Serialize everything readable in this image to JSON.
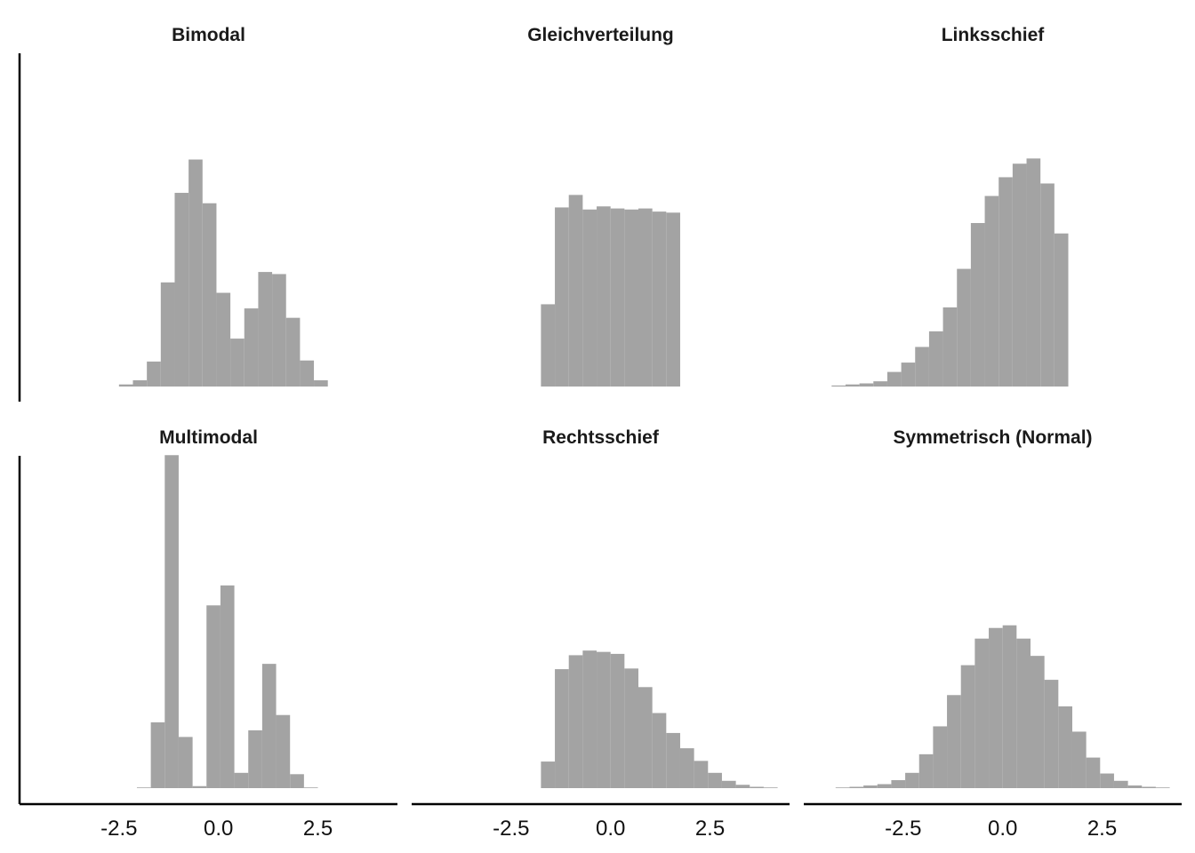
{
  "chart_data": [
    {
      "type": "bar",
      "title": "Bimodal",
      "xlabel": "",
      "ylabel": "",
      "xlim": [
        -5.0,
        4.5
      ],
      "ylim": [
        0,
        0.32
      ],
      "grid": false,
      "bin_edges": [
        -2.5,
        -2.15,
        -1.8,
        -1.45,
        -1.1,
        -0.75,
        -0.4,
        -0.05,
        0.3,
        0.65,
        1.0,
        1.35,
        1.7,
        2.05,
        2.4,
        2.75
      ],
      "values": [
        0.002,
        0.006,
        0.024,
        0.1,
        0.186,
        0.218,
        0.176,
        0.09,
        0.046,
        0.075,
        0.11,
        0.108,
        0.066,
        0.025,
        0.006
      ]
    },
    {
      "type": "bar",
      "title": "Gleichverteilung",
      "xlabel": "",
      "ylabel": "",
      "xlim": [
        -5.0,
        4.5
      ],
      "ylim": [
        0,
        0.32
      ],
      "grid": false,
      "bin_edges": [
        -1.75,
        -1.4,
        -1.05,
        -0.7,
        -0.35,
        0.0,
        0.35,
        0.7,
        1.05,
        1.4,
        1.75
      ],
      "values": [
        0.079,
        0.172,
        0.184,
        0.17,
        0.173,
        0.171,
        0.17,
        0.171,
        0.168,
        0.167,
        0.091
      ]
    },
    {
      "type": "bar",
      "title": "Linksschief",
      "xlabel": "",
      "ylabel": "",
      "xlim": [
        -5.0,
        4.5
      ],
      "ylim": [
        0,
        0.32
      ],
      "grid": false,
      "bin_edges": [
        -4.3,
        -3.95,
        -3.6,
        -3.25,
        -2.9,
        -2.55,
        -2.2,
        -1.85,
        -1.5,
        -1.15,
        -0.8,
        -0.45,
        -0.1,
        0.25,
        0.6,
        0.95,
        1.3,
        1.65
      ],
      "values": [
        0.001,
        0.002,
        0.003,
        0.005,
        0.014,
        0.023,
        0.038,
        0.053,
        0.076,
        0.113,
        0.157,
        0.183,
        0.201,
        0.214,
        0.219,
        0.195,
        0.147,
        0.042
      ]
    },
    {
      "type": "bar",
      "title": "Multimodal",
      "xlabel": "",
      "ylabel": "",
      "xlim": [
        -5.0,
        4.5
      ],
      "ylim": [
        0,
        0.5
      ],
      "grid": false,
      "bin_edges": [
        -2.05,
        -1.7,
        -1.35,
        -1.0,
        -0.65,
        -0.3,
        0.05,
        0.4,
        0.75,
        1.1,
        1.45,
        1.8,
        2.15,
        2.5
      ],
      "values": [
        0.001,
        0.099,
        0.501,
        0.077,
        0.003,
        0.275,
        0.305,
        0.023,
        0.087,
        0.187,
        0.11,
        0.021,
        0.001
      ]
    },
    {
      "type": "bar",
      "title": "Rechtsschief",
      "xlabel": "",
      "ylabel": "",
      "xlim": [
        -5.0,
        4.5
      ],
      "ylim": [
        0,
        0.5
      ],
      "grid": false,
      "bin_edges": [
        -1.75,
        -1.4,
        -1.05,
        -0.7,
        -0.35,
        0.0,
        0.35,
        0.7,
        1.05,
        1.4,
        1.75,
        2.1,
        2.45,
        2.8,
        3.15,
        3.5,
        3.85,
        4.2
      ],
      "values": [
        0.04,
        0.179,
        0.2,
        0.207,
        0.205,
        0.202,
        0.18,
        0.152,
        0.113,
        0.083,
        0.06,
        0.041,
        0.023,
        0.011,
        0.005,
        0.002,
        0.001
      ]
    },
    {
      "type": "bar",
      "title": "Symmetrisch (Normal)",
      "xlabel": "",
      "ylabel": "",
      "xlim": [
        -5.0,
        4.5
      ],
      "ylim": [
        0,
        0.5
      ],
      "grid": false,
      "bin_edges": [
        -4.2,
        -3.85,
        -3.5,
        -3.15,
        -2.8,
        -2.45,
        -2.1,
        -1.75,
        -1.4,
        -1.05,
        -0.7,
        -0.35,
        0.0,
        0.35,
        0.7,
        1.05,
        1.4,
        1.75,
        2.1,
        2.45,
        2.8,
        3.15,
        3.5,
        3.85,
        4.2
      ],
      "values": [
        0.001,
        0.002,
        0.004,
        0.006,
        0.012,
        0.023,
        0.051,
        0.093,
        0.14,
        0.185,
        0.225,
        0.241,
        0.245,
        0.225,
        0.199,
        0.163,
        0.123,
        0.085,
        0.046,
        0.022,
        0.011,
        0.004,
        0.002,
        0.001
      ]
    }
  ],
  "layout": {
    "rows": 2,
    "cols": 3,
    "shared_x_ticks": [
      "-2.5",
      "0.0",
      "2.5"
    ],
    "tick_values": [
      -2.5,
      0.0,
      2.5
    ]
  },
  "colors": {
    "bar": "#a3a3a3",
    "axis": "#000000",
    "title": "#1a1a1a",
    "background": "#ffffff"
  }
}
